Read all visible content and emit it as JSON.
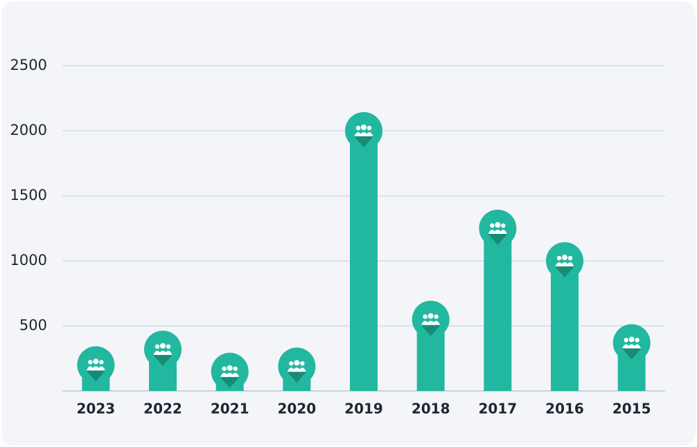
{
  "chart_data": {
    "type": "bar",
    "categories": [
      "2023",
      "2022",
      "2021",
      "2020",
      "2019",
      "2018",
      "2017",
      "2016",
      "2015"
    ],
    "values": [
      200,
      320,
      150,
      190,
      2000,
      550,
      1250,
      1000,
      370
    ],
    "color": "#22b89f",
    "ylim": [
      0,
      2500
    ],
    "yticks": [
      500,
      1000,
      1500,
      2000,
      2500
    ],
    "grid": true
  }
}
